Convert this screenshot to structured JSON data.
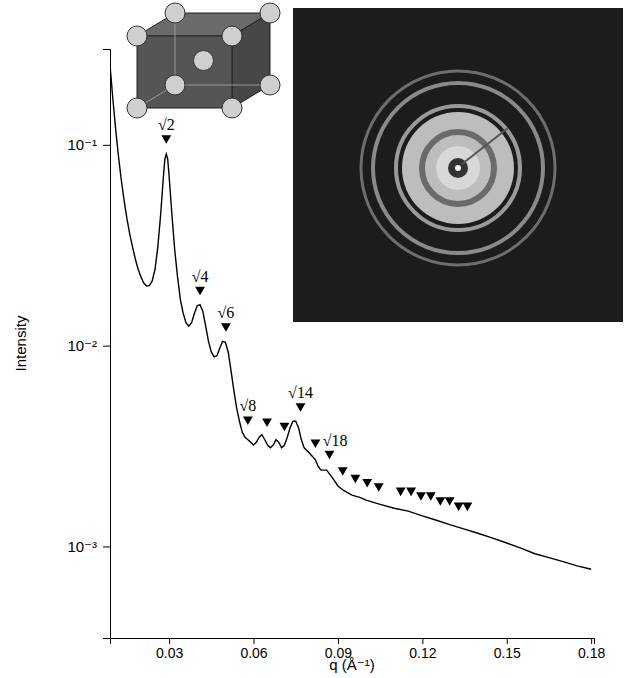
{
  "chart_data": {
    "type": "line",
    "xlabel": "q (Å⁻¹)",
    "ylabel": "Intensity",
    "log": "y",
    "xlim": [
      0.009,
      0.181
    ],
    "ylim": [
      0.00035,
      0.3
    ],
    "xticks": [
      0.03,
      0.06,
      0.09,
      0.12,
      0.15,
      0.18
    ],
    "yticks": [
      {
        "value": 0.001,
        "label": "10⁻³"
      },
      {
        "value": 0.01,
        "label": "10⁻²"
      },
      {
        "value": 0.1,
        "label": "10⁻¹"
      }
    ],
    "series": [
      {
        "type": "line",
        "color": "#000000",
        "line_style": "solid",
        "x": [
          0.009,
          0.01,
          0.011,
          0.012,
          0.013,
          0.014,
          0.015,
          0.016,
          0.017,
          0.018,
          0.019,
          0.02,
          0.021,
          0.022,
          0.023,
          0.024,
          0.025,
          0.026,
          0.027,
          0.028,
          0.0285,
          0.029,
          0.0295,
          0.03,
          0.031,
          0.032,
          0.033,
          0.034,
          0.035,
          0.036,
          0.037,
          0.038,
          0.039,
          0.04,
          0.041,
          0.042,
          0.043,
          0.044,
          0.045,
          0.046,
          0.047,
          0.048,
          0.049,
          0.05,
          0.051,
          0.052,
          0.053,
          0.054,
          0.055,
          0.056,
          0.057,
          0.058,
          0.059,
          0.06,
          0.061,
          0.062,
          0.063,
          0.064,
          0.065,
          0.066,
          0.067,
          0.068,
          0.069,
          0.07,
          0.071,
          0.072,
          0.073,
          0.074,
          0.075,
          0.076,
          0.077,
          0.078,
          0.08,
          0.082,
          0.083,
          0.084,
          0.086,
          0.088,
          0.09,
          0.092,
          0.095,
          0.098,
          0.1,
          0.105,
          0.11,
          0.115,
          0.12,
          0.125,
          0.13,
          0.135,
          0.14,
          0.145,
          0.15,
          0.155,
          0.16,
          0.165,
          0.17,
          0.175,
          0.18
        ],
        "values": [
          0.25,
          0.17,
          0.12,
          0.088,
          0.067,
          0.053,
          0.043,
          0.036,
          0.031,
          0.027,
          0.024,
          0.022,
          0.0205,
          0.0198,
          0.0199,
          0.021,
          0.024,
          0.031,
          0.045,
          0.07,
          0.085,
          0.09,
          0.085,
          0.07,
          0.045,
          0.03,
          0.022,
          0.017,
          0.0145,
          0.013,
          0.0125,
          0.013,
          0.0145,
          0.0158,
          0.016,
          0.0148,
          0.0125,
          0.0105,
          0.0093,
          0.0088,
          0.0089,
          0.0097,
          0.0105,
          0.0104,
          0.0093,
          0.0075,
          0.006,
          0.0049,
          0.0042,
          0.0037,
          0.0035,
          0.0034,
          0.0033,
          0.0032,
          0.0033,
          0.0035,
          0.0036,
          0.0034,
          0.0032,
          0.0031,
          0.0032,
          0.0034,
          0.0033,
          0.0031,
          0.0032,
          0.0035,
          0.0039,
          0.0042,
          0.0042,
          0.0039,
          0.0034,
          0.0031,
          0.0029,
          0.0027,
          0.0025,
          0.0024,
          0.0024,
          0.0022,
          0.002,
          0.0019,
          0.0018,
          0.00175,
          0.0017,
          0.00162,
          0.00155,
          0.0015,
          0.00142,
          0.00135,
          0.00128,
          0.00122,
          0.00116,
          0.0011,
          0.00104,
          0.00098,
          0.00092,
          0.00088,
          0.00084,
          0.0008,
          0.00077
        ]
      },
      {
        "type": "scatter",
        "color": "#000000",
        "marker": "triangle-down",
        "x": [
          0.029,
          0.041,
          0.0502,
          0.058,
          0.0648,
          0.071,
          0.0767,
          0.082,
          0.087,
          0.0917,
          0.0962,
          0.1004,
          0.1045,
          0.1123,
          0.116,
          0.1195,
          0.123,
          0.1264,
          0.1297,
          0.1329,
          0.136
        ],
        "values": [
          0.108,
          0.019,
          0.0125,
          0.0043,
          0.0042,
          0.004,
          0.005,
          0.0033,
          0.0029,
          0.0024,
          0.0022,
          0.0021,
          0.002,
          0.0019,
          0.0019,
          0.0018,
          0.0018,
          0.0017,
          0.0017,
          0.0016,
          0.0016
        ]
      }
    ],
    "annotations": [
      {
        "text": "√2",
        "x": 0.029,
        "y": 0.108
      },
      {
        "text": "√4",
        "x": 0.041,
        "y": 0.019
      },
      {
        "text": "√6",
        "x": 0.0502,
        "y": 0.0125
      },
      {
        "text": "√8",
        "x": 0.058,
        "y": 0.0043
      },
      {
        "text": "√14",
        "x": 0.0767,
        "y": 0.005
      },
      {
        "text": "√18",
        "x": 0.089,
        "y": 0.0029
      }
    ]
  }
}
